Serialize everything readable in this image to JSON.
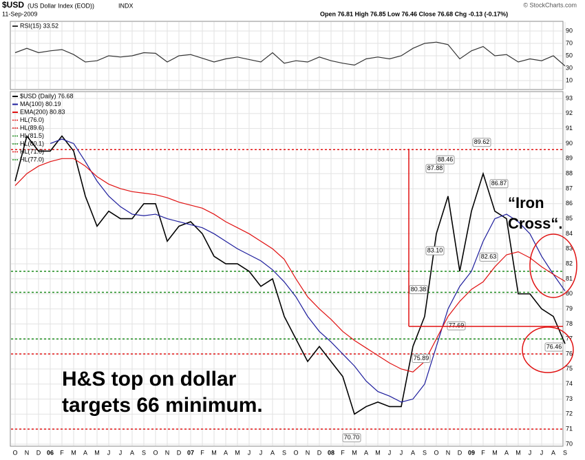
{
  "header": {
    "symbol": "$USD",
    "name": "(US Dollar Index (EOD))",
    "exchange": "INDX",
    "date": "11-Sep-2009",
    "quote": "Open 76.81  High 76.85  Low 76.46  Close 76.68  Chg -0.13 (-0.17%)",
    "credit": "© StockCharts.com"
  },
  "chart_data": [
    {
      "type": "line",
      "categories": [
        "O",
        "N",
        "D",
        "06",
        "F",
        "M",
        "A",
        "M",
        "J",
        "J",
        "A",
        "S",
        "O",
        "N",
        "D",
        "07",
        "F",
        "M",
        "A",
        "M",
        "J",
        "J",
        "A",
        "S",
        "O",
        "N",
        "D",
        "08",
        "F",
        "M",
        "A",
        "M",
        "J",
        "J",
        "A",
        "S",
        "O",
        "N",
        "D",
        "09",
        "F",
        "M",
        "A",
        "M",
        "J",
        "J",
        "A",
        "S"
      ],
      "series": [
        {
          "name": "RSI(15) 33.52",
          "color": "#333333",
          "values": [
            55,
            62,
            55,
            58,
            60,
            52,
            40,
            42,
            50,
            48,
            50,
            55,
            54,
            40,
            50,
            52,
            46,
            40,
            45,
            48,
            44,
            40,
            55,
            38,
            42,
            40,
            48,
            42,
            38,
            35,
            45,
            48,
            45,
            50,
            62,
            70,
            72,
            68,
            45,
            58,
            65,
            50,
            52,
            40,
            45,
            42,
            50,
            33.52
          ]
        }
      ],
      "ylim": [
        0,
        100
      ],
      "yticks": [
        10,
        30,
        50,
        70,
        90
      ],
      "grid": true
    },
    {
      "type": "line",
      "categories": [
        "O",
        "N",
        "D",
        "06",
        "F",
        "M",
        "A",
        "M",
        "J",
        "J",
        "A",
        "S",
        "O",
        "N",
        "D",
        "07",
        "F",
        "M",
        "A",
        "M",
        "J",
        "J",
        "A",
        "S",
        "O",
        "N",
        "D",
        "08",
        "F",
        "M",
        "A",
        "M",
        "J",
        "J",
        "A",
        "S",
        "O",
        "N",
        "D",
        "09",
        "F",
        "M",
        "A",
        "M",
        "J",
        "J",
        "A",
        "S"
      ],
      "series": [
        {
          "name": "$USD (Daily) 76.68",
          "color": "#000000",
          "values": [
            87.5,
            90.5,
            89.5,
            89.5,
            90.5,
            89.5,
            86.5,
            84.5,
            85.5,
            85.0,
            85.0,
            86.0,
            86.0,
            83.5,
            84.5,
            84.8,
            84.0,
            82.5,
            82.0,
            82.0,
            81.5,
            80.5,
            81.0,
            78.5,
            77.0,
            75.5,
            76.5,
            75.5,
            74.5,
            72.0,
            72.5,
            72.8,
            72.5,
            72.5,
            76.5,
            78.5,
            84.0,
            86.5,
            81.5,
            85.5,
            88.0,
            85.5,
            85.0,
            80.0,
            80.0,
            79.0,
            78.5,
            76.68
          ]
        },
        {
          "name": "MA(100) 80.19",
          "color": "#1c1c9c",
          "values": [
            null,
            null,
            null,
            90.0,
            90.3,
            90.0,
            88.8,
            87.5,
            86.5,
            85.8,
            85.3,
            85.2,
            85.3,
            85.0,
            84.8,
            84.6,
            84.4,
            84.0,
            83.5,
            83.0,
            82.6,
            82.2,
            81.6,
            80.8,
            79.8,
            78.5,
            77.5,
            76.8,
            76.0,
            75.2,
            74.2,
            73.5,
            73.2,
            72.8,
            73.0,
            74.0,
            76.5,
            79.0,
            80.5,
            81.5,
            83.5,
            85.0,
            85.3,
            84.8,
            84.0,
            82.5,
            81.3,
            80.19
          ]
        },
        {
          "name": "EMA(200) 80.83",
          "color": "#e01010",
          "values": [
            87.2,
            88.0,
            88.5,
            88.8,
            89.0,
            89.0,
            88.5,
            87.8,
            87.3,
            87.0,
            86.8,
            86.7,
            86.6,
            86.4,
            86.1,
            85.9,
            85.7,
            85.3,
            84.8,
            84.4,
            84.0,
            83.5,
            83.0,
            82.3,
            81.0,
            79.8,
            79.0,
            78.3,
            77.5,
            76.9,
            76.4,
            75.9,
            75.4,
            75.0,
            74.8,
            75.5,
            77.0,
            78.5,
            79.5,
            80.3,
            80.8,
            81.8,
            82.6,
            82.8,
            82.4,
            81.8,
            81.3,
            80.83
          ]
        }
      ],
      "hlines": [
        {
          "name": "HL(76.0)",
          "value": 76.0,
          "color": "#e01010"
        },
        {
          "name": "HL(89.6)",
          "value": 89.6,
          "color": "#e01010"
        },
        {
          "name": "HL(81.5)",
          "value": 81.5,
          "color": "#1a8a1a"
        },
        {
          "name": "HL(80.1)",
          "value": 80.1,
          "color": "#1a8a1a"
        },
        {
          "name": "HL(71.0)",
          "value": 71.0,
          "color": "#e01010"
        },
        {
          "name": "HL(77.0)",
          "value": 77.0,
          "color": "#1a8a1a"
        }
      ],
      "price_labels": [
        89.62,
        88.46,
        87.88,
        86.87,
        {
          "value": 83.1,
          "label": "83.10"
        },
        82.63,
        80.38,
        77.69,
        75.89,
        {
          "value": 70.7,
          "label": "70.70"
        },
        76.46
      ],
      "annotations": [
        "H&S top on dollar",
        "targets 66 minimum.",
        "“Iron",
        "Cross“."
      ],
      "ylim": [
        70,
        93
      ],
      "yticks": [
        70,
        71,
        72,
        73,
        74,
        75,
        76,
        77,
        78,
        79,
        80,
        81,
        82,
        83,
        84,
        85,
        86,
        87,
        88,
        89,
        90,
        91,
        92,
        93
      ],
      "grid": true
    }
  ]
}
